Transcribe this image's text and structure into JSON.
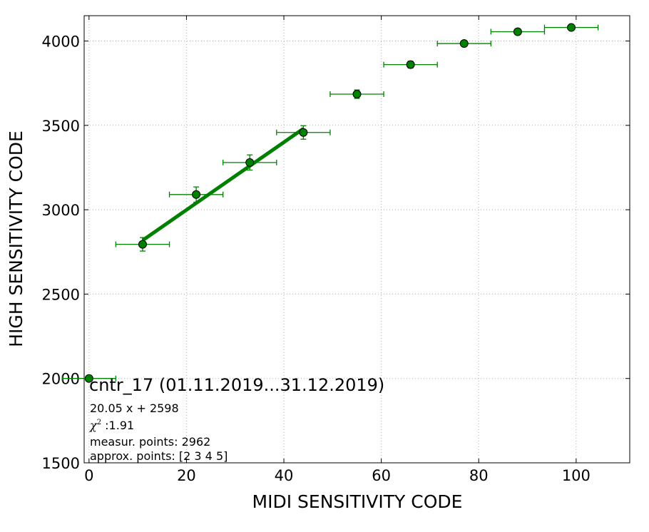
{
  "chart_data": {
    "type": "scatter",
    "xlabel": "MIDI SENSITIVITY CODE",
    "ylabel": "HIGH SENSITIVITY CODE",
    "xlim": [
      -1,
      111
    ],
    "ylim": [
      1500,
      4150
    ],
    "xticks": [
      0,
      20,
      40,
      60,
      80,
      100
    ],
    "yticks": [
      1500,
      2000,
      2500,
      3000,
      3500,
      4000
    ],
    "grid": true,
    "series": [
      {
        "color": "#008000",
        "marker": "circle",
        "points": [
          {
            "x": 0,
            "y": 2000,
            "xerr": 5.5,
            "yerr": 0
          },
          {
            "x": 11,
            "y": 2795,
            "xerr": 5.5,
            "yerr": 40
          },
          {
            "x": 22,
            "y": 3090,
            "xerr": 5.5,
            "yerr": 45
          },
          {
            "x": 33,
            "y": 3280,
            "xerr": 5.5,
            "yerr": 45
          },
          {
            "x": 44,
            "y": 3458,
            "xerr": 5.5,
            "yerr": 40
          },
          {
            "x": 55,
            "y": 3685,
            "xerr": 5.5,
            "yerr": 25
          },
          {
            "x": 66,
            "y": 3860,
            "xerr": 5.5,
            "yerr": 20
          },
          {
            "x": 77,
            "y": 3985,
            "xerr": 5.5,
            "yerr": 10
          },
          {
            "x": 88,
            "y": 4055,
            "xerr": 5.5,
            "yerr": 10
          },
          {
            "x": 99,
            "y": 4080,
            "xerr": 5.5,
            "yerr": 10
          }
        ]
      }
    ],
    "fit_line": {
      "color": "#008000",
      "slope": 20.05,
      "intercept": 2598,
      "x_range": [
        11,
        44
      ]
    },
    "annotations": {
      "title": "cntr_17 (01.11.2019...31.12.2019)",
      "equation": "20.05 x + 2598",
      "chi_symbol": "χ",
      "chi_superscript": "2",
      "chi_value": " :1.91",
      "measur_points": "measur. points: 2962",
      "approx_points": "approx. points: [2 3 4 5]"
    }
  }
}
